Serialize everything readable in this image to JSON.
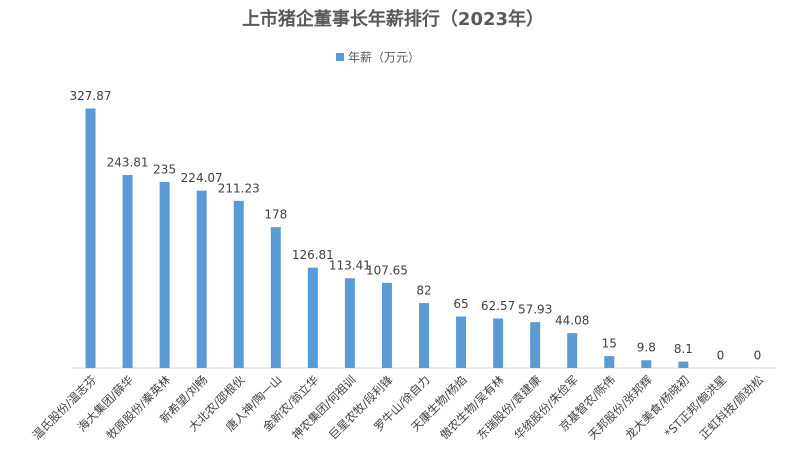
{
  "chart_data": {
    "type": "bar",
    "title": "上市猪企董事长年薪排行（2023年）",
    "series": [
      {
        "name": "年薪（万元）",
        "color": "#5b9bd5",
        "values": [
          327.87,
          243.81,
          235,
          224.07,
          211.23,
          178,
          126.81,
          113.41,
          107.65,
          82,
          65,
          62.57,
          57.93,
          44.08,
          15,
          9.8,
          8.1,
          0,
          0
        ]
      }
    ],
    "categories": [
      "温氏股份/温志芬",
      "海大集团/薛华",
      "牧原股份/秦英林",
      "新希望/刘畅",
      "大北农/邵根伙",
      "唐人神/陶一山",
      "金新农/翁立华",
      "神农集团/何祖训",
      "巨星农牧/段利锋",
      "罗牛山/徐自力",
      "天康生物/杨焰",
      "傲农生物/吴有林",
      "东瑞股份/袁建康",
      "华统股份/朱俭军",
      "京基智农/陈伟",
      "天邦股份/张邦辉",
      "龙大美食/杨晓初",
      "*ST正邦/鲍洪星",
      "正虹科技/颜劲松"
    ],
    "ylim": [
      0,
      350
    ],
    "legend": "top"
  }
}
